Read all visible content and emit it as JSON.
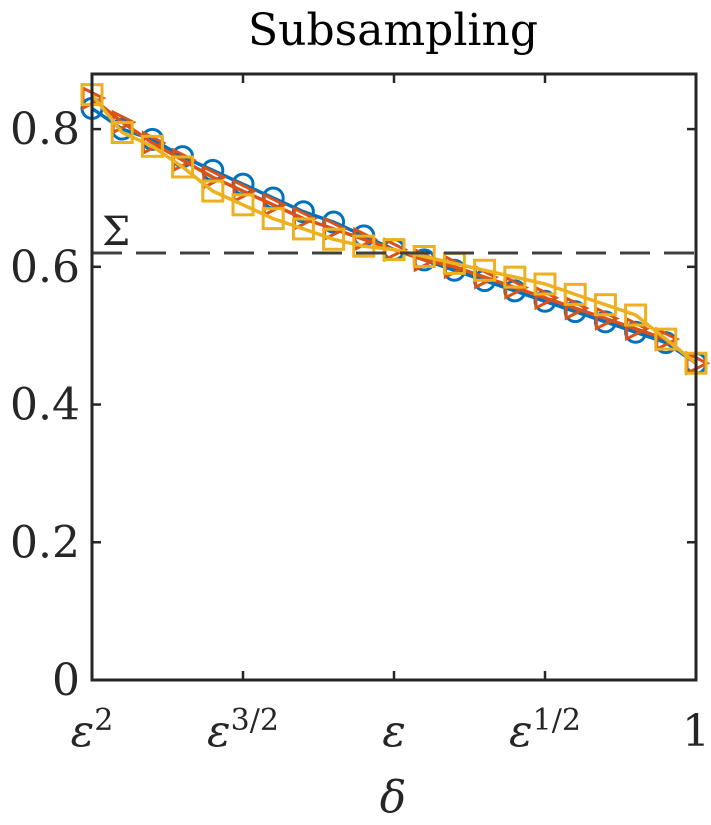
{
  "chart_data": {
    "type": "line",
    "title": "Subsampling",
    "xlabel": "δ",
    "ylabel": "",
    "xlim": [
      0,
      4
    ],
    "ylim": [
      0,
      0.88
    ],
    "grid": false,
    "y_ticks": [
      {
        "value": 0,
        "label": "0"
      },
      {
        "value": 0.2,
        "label": "0.2"
      },
      {
        "value": 0.4,
        "label": "0.4"
      },
      {
        "value": 0.6,
        "label": "0.6"
      },
      {
        "value": 0.8,
        "label": "0.8"
      }
    ],
    "x_ticks": [
      {
        "value": 0,
        "base": "ε",
        "exp": "2"
      },
      {
        "value": 1,
        "base": "ε",
        "exp": "3/2"
      },
      {
        "value": 2,
        "base": "ε",
        "exp": ""
      },
      {
        "value": 3,
        "base": "ε",
        "exp": "1/2"
      },
      {
        "value": 4,
        "base": "1",
        "exp": ""
      }
    ],
    "reference_line": {
      "label": "Σ",
      "y": 0.62,
      "color": "#404040"
    },
    "x": [
      0,
      0.2,
      0.4,
      0.6,
      0.8,
      1.0,
      1.2,
      1.4,
      1.6,
      1.8,
      2.0,
      2.2,
      2.4,
      2.6,
      2.8,
      3.0,
      3.2,
      3.4,
      3.6,
      3.8,
      4.0
    ],
    "series": [
      {
        "color": "#0072BD",
        "marker": "circle",
        "values": [
          0.83,
          0.8,
          0.785,
          0.76,
          0.74,
          0.72,
          0.7,
          0.68,
          0.665,
          0.645,
          0.625,
          0.61,
          0.595,
          0.58,
          0.565,
          0.55,
          0.535,
          0.52,
          0.505,
          0.49,
          0.46
        ]
      },
      {
        "color": "#D95319",
        "marker": "triangle-right",
        "values": [
          0.845,
          0.81,
          0.78,
          0.755,
          0.73,
          0.71,
          0.69,
          0.67,
          0.655,
          0.64,
          0.625,
          0.61,
          0.6,
          0.585,
          0.57,
          0.555,
          0.54,
          0.525,
          0.51,
          0.495,
          0.46
        ]
      },
      {
        "color": "#EDB120",
        "marker": "square",
        "values": [
          0.85,
          0.795,
          0.775,
          0.745,
          0.71,
          0.69,
          0.67,
          0.655,
          0.64,
          0.63,
          0.625,
          0.615,
          0.605,
          0.595,
          0.585,
          0.575,
          0.56,
          0.545,
          0.53,
          0.495,
          0.46
        ]
      }
    ]
  }
}
